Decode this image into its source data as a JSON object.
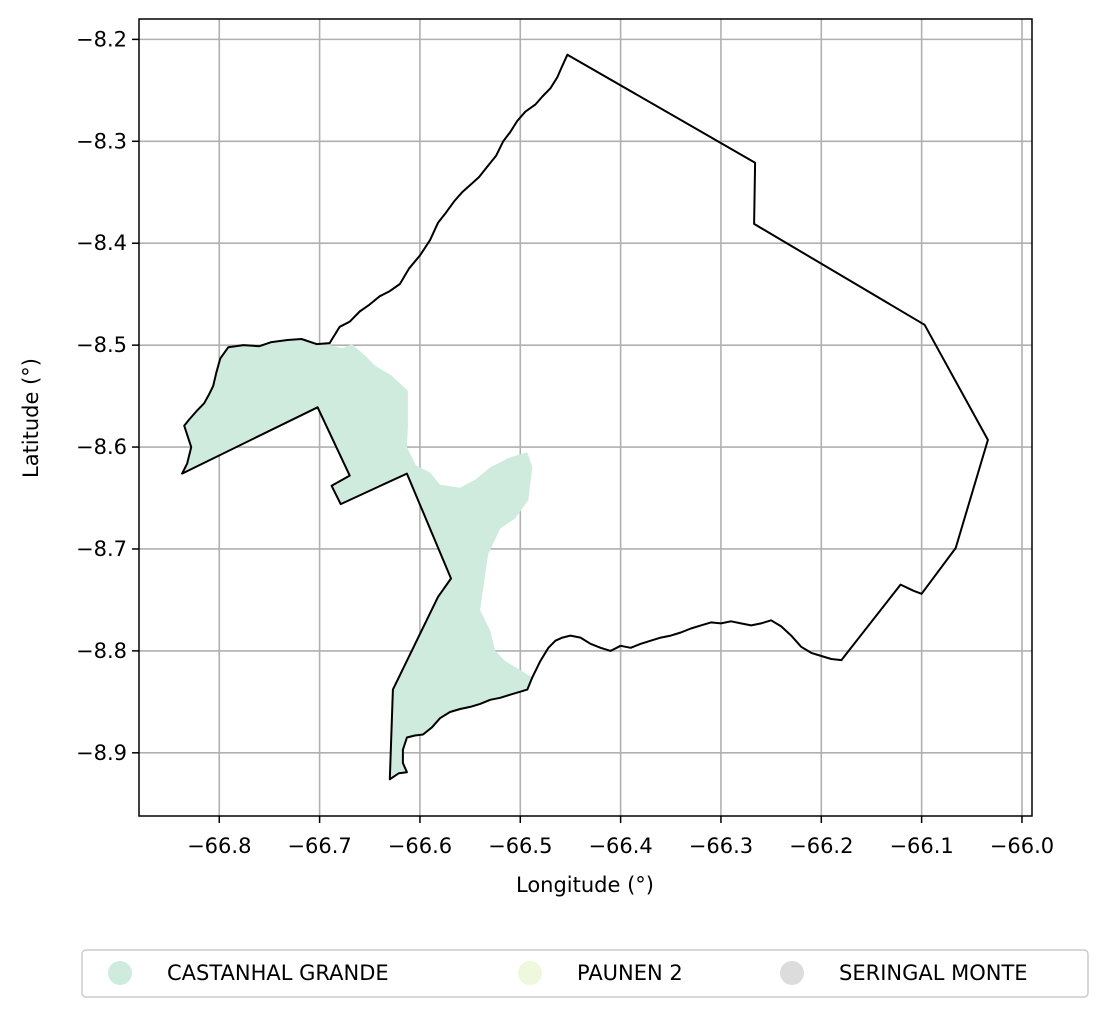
{
  "chart_data": {
    "type": "map",
    "xlabel": "Longitude (°)",
    "ylabel": "Latitude (°)",
    "xlim": [
      -66.88,
      -65.99
    ],
    "ylim": [
      -8.962,
      -8.18
    ],
    "x_ticks": [
      -66.8,
      -66.7,
      -66.6,
      -66.5,
      -66.4,
      -66.3,
      -66.2,
      -66.1,
      -66.0
    ],
    "x_tick_labels": [
      "−66.8",
      "−66.7",
      "−66.6",
      "−66.5",
      "−66.4",
      "−66.3",
      "−66.2",
      "−66.1",
      "−66.0"
    ],
    "y_ticks": [
      -8.2,
      -8.3,
      -8.4,
      -8.5,
      -8.6,
      -8.7,
      -8.8,
      -8.9
    ],
    "y_tick_labels": [
      "−8.2",
      "−8.3",
      "−8.4",
      "−8.5",
      "−8.6",
      "−8.7",
      "−8.8",
      "−8.9"
    ],
    "grid": true,
    "legend_position": "bottom",
    "legend": [
      {
        "label": "CASTANHAL GRANDE",
        "color": "#cfebdd"
      },
      {
        "label": "PAUNEN 2",
        "color": "#edf8dc"
      },
      {
        "label": "SERINGAL MONTE",
        "color": "#dcdcdc"
      }
    ],
    "boundary_color": "#000000",
    "filled_region_color": "#cfebdd",
    "boundary": [
      [
        -66.837,
        -8.626
      ],
      [
        -66.832,
        -8.616
      ],
      [
        -66.828,
        -8.6
      ],
      [
        -66.835,
        -8.579
      ],
      [
        -66.83,
        -8.573
      ],
      [
        -66.822,
        -8.564
      ],
      [
        -66.815,
        -8.557
      ],
      [
        -66.81,
        -8.548
      ],
      [
        -66.806,
        -8.54
      ],
      [
        -66.803,
        -8.527
      ],
      [
        -66.799,
        -8.513
      ],
      [
        -66.791,
        -8.502
      ],
      [
        -66.776,
        -8.5
      ],
      [
        -66.76,
        -8.501
      ],
      [
        -66.748,
        -8.497
      ],
      [
        -66.732,
        -8.495
      ],
      [
        -66.718,
        -8.494
      ],
      [
        -66.703,
        -8.499
      ],
      [
        -66.69,
        -8.498
      ],
      [
        -66.68,
        -8.482
      ],
      [
        -66.67,
        -8.477
      ],
      [
        -66.66,
        -8.467
      ],
      [
        -66.65,
        -8.46
      ],
      [
        -66.64,
        -8.452
      ],
      [
        -66.63,
        -8.447
      ],
      [
        -66.62,
        -8.44
      ],
      [
        -66.611,
        -8.425
      ],
      [
        -66.6,
        -8.412
      ],
      [
        -66.59,
        -8.397
      ],
      [
        -66.582,
        -8.38
      ],
      [
        -66.574,
        -8.37
      ],
      [
        -66.566,
        -8.359
      ],
      [
        -66.558,
        -8.35
      ],
      [
        -66.55,
        -8.343
      ],
      [
        -66.541,
        -8.335
      ],
      [
        -66.533,
        -8.325
      ],
      [
        -66.524,
        -8.314
      ],
      [
        -66.517,
        -8.3
      ],
      [
        -66.51,
        -8.291
      ],
      [
        -66.503,
        -8.28
      ],
      [
        -66.495,
        -8.271
      ],
      [
        -66.485,
        -8.264
      ],
      [
        -66.478,
        -8.256
      ],
      [
        -66.47,
        -8.248
      ],
      [
        -66.463,
        -8.237
      ],
      [
        -66.459,
        -8.228
      ],
      [
        -66.453,
        -8.215
      ],
      [
        -66.266,
        -8.321
      ],
      [
        -66.267,
        -8.381
      ],
      [
        -66.097,
        -8.48
      ],
      [
        -66.034,
        -8.593
      ],
      [
        -66.066,
        -8.699
      ],
      [
        -66.1,
        -8.744
      ],
      [
        -66.108,
        -8.741
      ],
      [
        -66.121,
        -8.735
      ],
      [
        -66.18,
        -8.809
      ],
      [
        -66.19,
        -8.808
      ],
      [
        -66.2,
        -8.805
      ],
      [
        -66.21,
        -8.802
      ],
      [
        -66.22,
        -8.796
      ],
      [
        -66.23,
        -8.785
      ],
      [
        -66.24,
        -8.776
      ],
      [
        -66.25,
        -8.77
      ],
      [
        -66.26,
        -8.773
      ],
      [
        -66.27,
        -8.775
      ],
      [
        -66.28,
        -8.773
      ],
      [
        -66.29,
        -8.771
      ],
      [
        -66.3,
        -8.773
      ],
      [
        -66.31,
        -8.772
      ],
      [
        -66.32,
        -8.775
      ],
      [
        -66.33,
        -8.778
      ],
      [
        -66.34,
        -8.782
      ],
      [
        -66.35,
        -8.785
      ],
      [
        -66.36,
        -8.787
      ],
      [
        -66.37,
        -8.79
      ],
      [
        -66.38,
        -8.793
      ],
      [
        -66.39,
        -8.797
      ],
      [
        -66.4,
        -8.795
      ],
      [
        -66.41,
        -8.8
      ],
      [
        -66.42,
        -8.797
      ],
      [
        -66.43,
        -8.793
      ],
      [
        -66.44,
        -8.787
      ],
      [
        -66.45,
        -8.785
      ],
      [
        -66.458,
        -8.787
      ],
      [
        -66.465,
        -8.79
      ],
      [
        -66.472,
        -8.797
      ],
      [
        -66.48,
        -8.81
      ],
      [
        -66.488,
        -8.826
      ],
      [
        -66.493,
        -8.838
      ],
      [
        -66.5,
        -8.84
      ],
      [
        -66.51,
        -8.843
      ],
      [
        -66.52,
        -8.846
      ],
      [
        -66.53,
        -8.848
      ],
      [
        -66.54,
        -8.852
      ],
      [
        -66.55,
        -8.855
      ],
      [
        -66.56,
        -8.857
      ],
      [
        -66.57,
        -8.86
      ],
      [
        -66.58,
        -8.866
      ],
      [
        -66.588,
        -8.875
      ],
      [
        -66.597,
        -8.882
      ],
      [
        -66.605,
        -8.883
      ],
      [
        -66.613,
        -8.885
      ],
      [
        -66.617,
        -8.897
      ],
      [
        -66.617,
        -8.91
      ],
      [
        -66.613,
        -8.919
      ],
      [
        -66.621,
        -8.92
      ],
      [
        -66.63,
        -8.926
      ],
      [
        -66.627,
        -8.838
      ],
      [
        -66.582,
        -8.747
      ],
      [
        -66.569,
        -8.729
      ],
      [
        -66.613,
        -8.626
      ],
      [
        -66.679,
        -8.656
      ],
      [
        -66.688,
        -8.638
      ],
      [
        -66.67,
        -8.628
      ],
      [
        -66.702,
        -8.561
      ],
      [
        -66.837,
        -8.626
      ]
    ],
    "filled_region": [
      [
        -66.837,
        -8.626
      ],
      [
        -66.832,
        -8.616
      ],
      [
        -66.828,
        -8.6
      ],
      [
        -66.835,
        -8.579
      ],
      [
        -66.83,
        -8.573
      ],
      [
        -66.822,
        -8.564
      ],
      [
        -66.815,
        -8.557
      ],
      [
        -66.81,
        -8.548
      ],
      [
        -66.806,
        -8.54
      ],
      [
        -66.803,
        -8.527
      ],
      [
        -66.799,
        -8.513
      ],
      [
        -66.791,
        -8.502
      ],
      [
        -66.776,
        -8.5
      ],
      [
        -66.76,
        -8.501
      ],
      [
        -66.748,
        -8.497
      ],
      [
        -66.732,
        -8.495
      ],
      [
        -66.718,
        -8.494
      ],
      [
        -66.703,
        -8.499
      ],
      [
        -66.69,
        -8.5
      ],
      [
        -66.677,
        -8.503
      ],
      [
        -66.668,
        -8.499
      ],
      [
        -66.655,
        -8.51
      ],
      [
        -66.645,
        -8.52
      ],
      [
        -66.628,
        -8.53
      ],
      [
        -66.612,
        -8.545
      ],
      [
        -66.612,
        -8.58
      ],
      [
        -66.613,
        -8.6
      ],
      [
        -66.604,
        -8.618
      ],
      [
        -66.59,
        -8.625
      ],
      [
        -66.58,
        -8.637
      ],
      [
        -66.56,
        -8.64
      ],
      [
        -66.545,
        -8.632
      ],
      [
        -66.53,
        -8.62
      ],
      [
        -66.51,
        -8.61
      ],
      [
        -66.493,
        -8.605
      ],
      [
        -66.488,
        -8.62
      ],
      [
        -66.492,
        -8.652
      ],
      [
        -66.505,
        -8.67
      ],
      [
        -66.52,
        -8.68
      ],
      [
        -66.532,
        -8.705
      ],
      [
        -66.537,
        -8.738
      ],
      [
        -66.54,
        -8.76
      ],
      [
        -66.53,
        -8.78
      ],
      [
        -66.525,
        -8.8
      ],
      [
        -66.515,
        -8.81
      ],
      [
        -66.488,
        -8.826
      ],
      [
        -66.493,
        -8.838
      ],
      [
        -66.5,
        -8.84
      ],
      [
        -66.51,
        -8.843
      ],
      [
        -66.52,
        -8.846
      ],
      [
        -66.53,
        -8.848
      ],
      [
        -66.54,
        -8.852
      ],
      [
        -66.55,
        -8.855
      ],
      [
        -66.56,
        -8.857
      ],
      [
        -66.57,
        -8.86
      ],
      [
        -66.58,
        -8.866
      ],
      [
        -66.588,
        -8.875
      ],
      [
        -66.597,
        -8.882
      ],
      [
        -66.605,
        -8.883
      ],
      [
        -66.613,
        -8.885
      ],
      [
        -66.617,
        -8.897
      ],
      [
        -66.617,
        -8.91
      ],
      [
        -66.613,
        -8.919
      ],
      [
        -66.621,
        -8.92
      ],
      [
        -66.63,
        -8.926
      ],
      [
        -66.627,
        -8.838
      ],
      [
        -66.582,
        -8.747
      ],
      [
        -66.569,
        -8.729
      ],
      [
        -66.613,
        -8.626
      ],
      [
        -66.679,
        -8.656
      ],
      [
        -66.688,
        -8.638
      ],
      [
        -66.67,
        -8.628
      ],
      [
        -66.702,
        -8.561
      ],
      [
        -66.837,
        -8.626
      ]
    ]
  }
}
